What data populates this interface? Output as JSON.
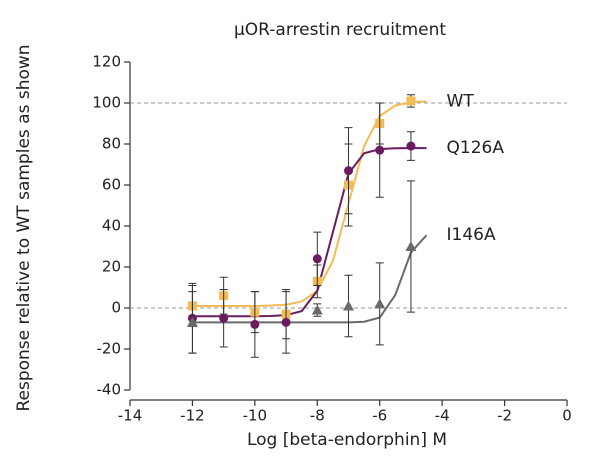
{
  "chart_data": {
    "type": "scatter",
    "title": "μOR-arrestin recruitment",
    "x_label": "Log [beta-endorphin] M",
    "y_label": "Response relative to WT samples as shown",
    "xlim": [
      -14,
      0
    ],
    "xticks": [
      -14,
      -12,
      -10,
      -8,
      -6,
      -4,
      -2,
      0
    ],
    "ylim": [
      -40,
      120
    ],
    "yticks": [
      -40,
      -20,
      0,
      20,
      40,
      60,
      80,
      100,
      120
    ],
    "reference_lines": [
      0,
      100
    ],
    "fit_x": [
      -12,
      -11.5,
      -11,
      -10.5,
      -10,
      -9.5,
      -9,
      -8.5,
      -8,
      -7.5,
      -7,
      -6.5,
      -6,
      -5.5,
      -5,
      -4.5
    ],
    "series": [
      {
        "name": "WT",
        "color": "#f2bb55",
        "marker": "square",
        "x": [
          -12,
          -11,
          -10,
          -9,
          -8,
          -7,
          -6,
          -5
        ],
        "values": [
          1,
          6,
          -2,
          -3,
          13,
          60,
          90,
          101
        ],
        "errors": [
          10,
          9,
          10,
          12,
          8,
          20,
          10,
          3
        ],
        "fit": [
          1,
          1,
          1,
          1,
          1,
          1.2,
          1.6,
          3.2,
          8.4,
          23,
          51,
          79,
          93.6,
          98.8,
          100.4,
          100.8
        ]
      },
      {
        "name": "Q126A",
        "color": "#6b1b5f",
        "marker": "circle",
        "x": [
          -12,
          -11,
          -10,
          -9,
          -8,
          -7,
          -6,
          -5
        ],
        "values": [
          -5,
          -5,
          -8,
          -7,
          24,
          67,
          77,
          79
        ],
        "errors": [
          17,
          14,
          16,
          15,
          13,
          21,
          23,
          7
        ],
        "fit": [
          -4,
          -4,
          -4,
          -4,
          -4,
          -3.9,
          -3.5,
          -1.5,
          8.4,
          37,
          65.6,
          75.5,
          77.5,
          77.9,
          78,
          78
        ]
      },
      {
        "name": "I146A",
        "color": "#6a6a6a",
        "marker": "triangle",
        "x": [
          -12,
          -8,
          -7,
          -6,
          -5
        ],
        "values": [
          -7,
          -1,
          1,
          2,
          30
        ],
        "errors": [
          15,
          3,
          15,
          20,
          32
        ],
        "fit": [
          -7,
          -7,
          -7,
          -7,
          -7,
          -7,
          -7,
          -7,
          -7,
          -7,
          -7,
          -6.7,
          -4.7,
          6.4,
          27.1,
          35.5
        ]
      }
    ]
  }
}
